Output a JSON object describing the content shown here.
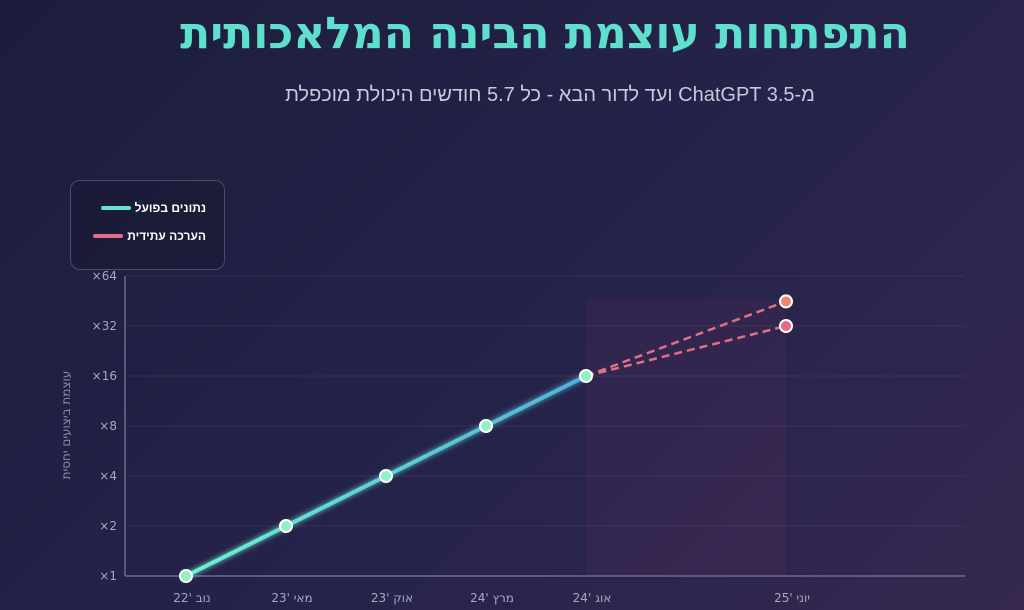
{
  "title": "התפתחות עוצמת הבינה המלאכותית",
  "subtitle": "מ-ChatGPT 3.5 ועד לדור הבא - כל 5.7 חודשים היכולת מוכפלת",
  "legend": {
    "actual": "נתונים בפועל",
    "projected": "הערכה עתידית"
  },
  "colors": {
    "actual": "#63e6cf",
    "projected": "#e26f86",
    "projected_point_high": "#ef8872",
    "projected_point_low": "#e86a88"
  },
  "chart_data": {
    "type": "line",
    "title": "התפתחות עוצמת הבינה המלאכותית",
    "subtitle": "מ-ChatGPT 3.5 ועד לדור הבא - כל 5.7 חודשים היכולת מוכפלת",
    "ylabel": "עוצמת ביצועים יחסית",
    "yscale": "log2",
    "ylim": [
      1,
      64
    ],
    "yticks": [
      1,
      2,
      4,
      8,
      16,
      32,
      64
    ],
    "ytick_labels": [
      "×1",
      "×2",
      "×4",
      "×8",
      "×16",
      "×32",
      "×64"
    ],
    "categories": [
      "נוב '22",
      "מאי '23",
      "אוק '23",
      "מרץ '24",
      "אוג '24",
      "יוני '25"
    ],
    "grid": true,
    "legend_position": "top-left",
    "series": [
      {
        "name": "נתונים בפועל",
        "style": "solid",
        "x": [
          0,
          1,
          2,
          3,
          4
        ],
        "values": [
          1,
          2,
          4,
          8,
          16
        ]
      },
      {
        "name": "הערכה עתידית",
        "style": "dashed",
        "x": [
          4,
          5
        ],
        "values": [
          16,
          45
        ]
      },
      {
        "name": "הערכה עתידית",
        "style": "dashed",
        "x": [
          4,
          5
        ],
        "values": [
          16,
          32
        ]
      }
    ]
  }
}
